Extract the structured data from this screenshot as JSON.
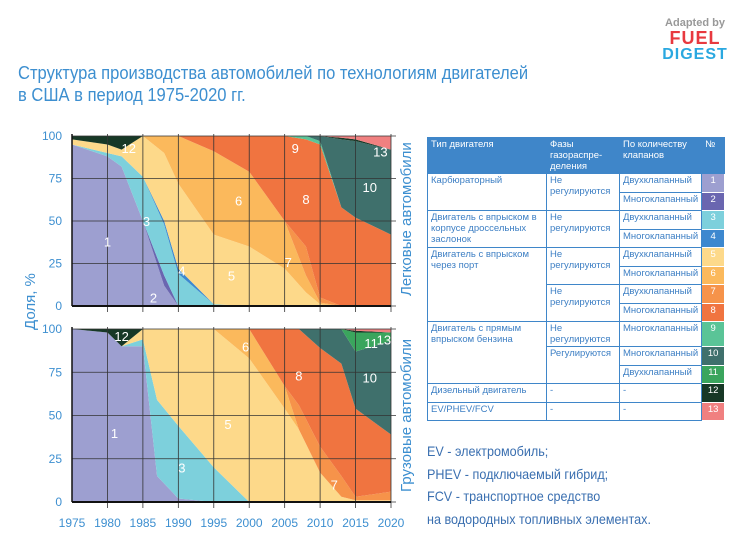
{
  "title_line1": "Структура производства автомобилей по технологиям двигателей",
  "title_line2": "в США в период 1975-2020 гг.",
  "logo": {
    "adapted": "Adapted by",
    "fuel": "FUEL",
    "digest": "DIGEST"
  },
  "y_axis_label": "Доля, %",
  "colors": {
    "1": "#9d9fd0",
    "2": "#6a66b0",
    "3": "#7dd0dc",
    "4": "#3d88cf",
    "5": "#fdd98a",
    "6": "#fbb95c",
    "7": "#f6934a",
    "8": "#f07440",
    "9": "#5ac497",
    "10": "#3f706c",
    "11": "#3aa55d",
    "12": "#173826",
    "13": "#f08080"
  },
  "chart_data": [
    {
      "type": "area",
      "stacked": true,
      "panel_label": "Легковые автомобили",
      "ylim": [
        0,
        100
      ],
      "yticks": [
        "0",
        "25",
        "50",
        "75",
        "100"
      ],
      "xlim": [
        1975,
        2020
      ],
      "grid": true,
      "x": [
        1975,
        1980,
        1982,
        1985,
        1988,
        1990,
        1995,
        2000,
        2005,
        2008,
        2010,
        2013,
        2015,
        2020
      ],
      "series": [
        {
          "name": "1",
          "values": [
            95,
            88,
            82,
            50,
            12,
            0,
            0,
            0,
            0,
            0,
            0,
            0,
            0,
            0
          ]
        },
        {
          "name": "2",
          "values": [
            0,
            0,
            0,
            0,
            6,
            0,
            0,
            0,
            0,
            0,
            0,
            0,
            0,
            0
          ]
        },
        {
          "name": "3",
          "values": [
            0,
            2,
            6,
            26,
            30,
            19,
            1,
            0,
            0,
            0,
            0,
            0,
            0,
            0
          ]
        },
        {
          "name": "4",
          "values": [
            0,
            0,
            0,
            0,
            2,
            3,
            0,
            0,
            0,
            0,
            0,
            0,
            0,
            0
          ]
        },
        {
          "name": "5",
          "values": [
            3,
            5,
            4,
            24,
            40,
            50,
            41,
            35,
            22,
            8,
            1,
            0,
            0,
            0
          ]
        },
        {
          "name": "6",
          "values": [
            0,
            0,
            0,
            0,
            10,
            28,
            49,
            44,
            28,
            10,
            1,
            0,
            0,
            0
          ]
        },
        {
          "name": "7",
          "values": [
            0,
            0,
            0,
            0,
            0,
            0,
            0,
            0,
            0,
            17,
            3,
            0,
            0,
            0
          ]
        },
        {
          "name": "8",
          "values": [
            0,
            0,
            0,
            0,
            0,
            0,
            9,
            21,
            50,
            63,
            90,
            58,
            52,
            42
          ]
        },
        {
          "name": "9",
          "values": [
            0,
            0,
            0,
            0,
            0,
            0,
            0,
            0,
            0,
            2,
            2,
            0,
            0,
            0
          ]
        },
        {
          "name": "10",
          "values": [
            0,
            0,
            0,
            0,
            0,
            0,
            0,
            0,
            0,
            0,
            3,
            40,
            45,
            50
          ]
        },
        {
          "name": "11",
          "values": [
            0,
            0,
            0,
            0,
            0,
            0,
            0,
            0,
            0,
            0,
            0,
            0,
            0,
            0
          ]
        },
        {
          "name": "12",
          "values": [
            2,
            5,
            8,
            0,
            0,
            0,
            0,
            0,
            0,
            0,
            0,
            1,
            1,
            0
          ]
        },
        {
          "name": "13",
          "values": [
            0,
            0,
            0,
            0,
            0,
            0,
            0,
            0,
            0,
            0,
            0,
            1,
            2,
            8
          ]
        }
      ]
    },
    {
      "type": "area",
      "stacked": true,
      "panel_label": "Грузовые автомобили",
      "ylim": [
        0,
        100
      ],
      "yticks": [
        "0",
        "25",
        "50",
        "75",
        "100"
      ],
      "xlim": [
        1975,
        2020
      ],
      "xticks": [
        "1975",
        "1980",
        "1985",
        "1990",
        "1995",
        "2000",
        "2005",
        "2010",
        "2015",
        "2020"
      ],
      "grid": true,
      "x": [
        1975,
        1980,
        1982,
        1985,
        1987,
        1990,
        1995,
        2000,
        2005,
        2007,
        2010,
        2013,
        2015,
        2020
      ],
      "series": [
        {
          "name": "1",
          "values": [
            100,
            98,
            90,
            90,
            15,
            2,
            0,
            0,
            0,
            0,
            0,
            0,
            0,
            0
          ]
        },
        {
          "name": "2",
          "values": [
            0,
            0,
            0,
            0,
            0,
            0,
            0,
            0,
            0,
            0,
            0,
            0,
            0,
            0
          ]
        },
        {
          "name": "3",
          "values": [
            0,
            0,
            0,
            4,
            44,
            42,
            20,
            0,
            0,
            0,
            0,
            0,
            0,
            0
          ]
        },
        {
          "name": "4",
          "values": [
            0,
            0,
            0,
            0,
            0,
            0,
            0,
            0,
            0,
            0,
            0,
            0,
            0,
            0
          ]
        },
        {
          "name": "5",
          "values": [
            0,
            0,
            0,
            6,
            41,
            56,
            80,
            83,
            54,
            42,
            17,
            3,
            1,
            1
          ]
        },
        {
          "name": "6",
          "values": [
            0,
            0,
            0,
            0,
            0,
            0,
            0,
            17,
            13,
            0,
            0,
            0,
            0,
            0
          ]
        },
        {
          "name": "7",
          "values": [
            0,
            0,
            0,
            0,
            0,
            0,
            0,
            0,
            0,
            14,
            15,
            12,
            2,
            5
          ]
        },
        {
          "name": "8",
          "values": [
            0,
            0,
            0,
            0,
            0,
            0,
            0,
            0,
            33,
            44,
            57,
            65,
            51,
            33
          ]
        },
        {
          "name": "9",
          "values": [
            0,
            0,
            0,
            0,
            0,
            0,
            0,
            0,
            0,
            0,
            0,
            0,
            0,
            0
          ]
        },
        {
          "name": "10",
          "values": [
            0,
            0,
            0,
            0,
            0,
            0,
            0,
            0,
            0,
            0,
            11,
            20,
            33,
            54
          ]
        },
        {
          "name": "11",
          "values": [
            0,
            0,
            0,
            0,
            0,
            0,
            0,
            0,
            0,
            0,
            0,
            0,
            11,
            5
          ]
        },
        {
          "name": "12",
          "values": [
            0,
            2,
            10,
            0,
            0,
            0,
            0,
            0,
            0,
            0,
            0,
            0,
            1,
            0
          ]
        },
        {
          "name": "13",
          "values": [
            0,
            0,
            0,
            0,
            0,
            0,
            0,
            0,
            0,
            0,
            0,
            0,
            1,
            2
          ]
        }
      ]
    }
  ],
  "table": {
    "headers": [
      "Тип двигателя",
      "Фазы газораспре-деления",
      "По количеству клапанов",
      "№"
    ],
    "types": [
      "Карбюраторный",
      "Двигатель с впрыском в корпусе дроссельных заслонок",
      "Двигатель с впрыском через порт",
      "Двигатель с прямым впрыском бензина",
      "Дизельный двигатель",
      "EV/PHEV/FCV"
    ],
    "phases": [
      "Не регулируются",
      "Не регулируются",
      "Не регулируются",
      "Не регулируются",
      "Не регулируются",
      "Регулируются",
      "-",
      "-"
    ],
    "valves": [
      "Двухклапанный",
      "Многоклапанный",
      "Двухклапанный",
      "Многоклапанный",
      "Двухклапанный",
      "Многоклапанный",
      "Двухклапанный",
      "Многоклапанный",
      "Многоклапанный",
      "Многоклапанный",
      "Двухклапанный",
      "-",
      "-"
    ],
    "numbers": [
      "1",
      "2",
      "3",
      "4",
      "5",
      "6",
      "7",
      "8",
      "9",
      "10",
      "11",
      "12",
      "13"
    ]
  },
  "notes": [
    "EV - электромобиль;",
    "PHEV - подключаемый гибрид;",
    "FCV - транспортное средство",
    "на водородных топливных элементах."
  ]
}
